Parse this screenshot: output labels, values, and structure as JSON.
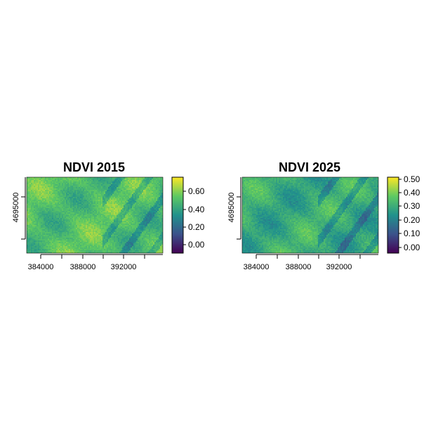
{
  "chart_data": [
    {
      "type": "heatmap",
      "title": "NDVI 2015",
      "xlabel": "",
      "ylabel": "",
      "x_ticks": [
        "384000",
        "388000",
        "392000"
      ],
      "y_ticks": [
        "4695000"
      ],
      "x_tick_values": [
        384000,
        388000,
        392000
      ],
      "y_tick_values": [
        4695000
      ],
      "xlim": [
        382600,
        395000
      ],
      "ylim": [
        4691000,
        4698000
      ],
      "legend": {
        "position": "right",
        "ticks": [
          "0.00",
          "0.20",
          "0.40",
          "0.60"
        ],
        "tick_values": [
          0.0,
          0.2,
          0.4,
          0.6
        ],
        "range": [
          -0.1,
          0.75
        ]
      },
      "colormap": "viridis",
      "value_mean": 0.5,
      "grid": false
    },
    {
      "type": "heatmap",
      "title": "NDVI 2025",
      "xlabel": "",
      "ylabel": "",
      "x_ticks": [
        "384000",
        "388000",
        "392000"
      ],
      "y_ticks": [
        "4695000"
      ],
      "x_tick_values": [
        384000,
        388000,
        392000
      ],
      "y_tick_values": [
        4695000
      ],
      "xlim": [
        382600,
        395000
      ],
      "ylim": [
        4691000,
        4698000
      ],
      "legend": {
        "position": "right",
        "ticks": [
          "0.00",
          "0.10",
          "0.20",
          "0.30",
          "0.40",
          "0.50"
        ],
        "tick_values": [
          0.0,
          0.1,
          0.2,
          0.3,
          0.4,
          0.5
        ],
        "range": [
          -0.05,
          0.52
        ]
      },
      "colormap": "viridis",
      "value_mean": 0.3,
      "grid": false
    }
  ]
}
